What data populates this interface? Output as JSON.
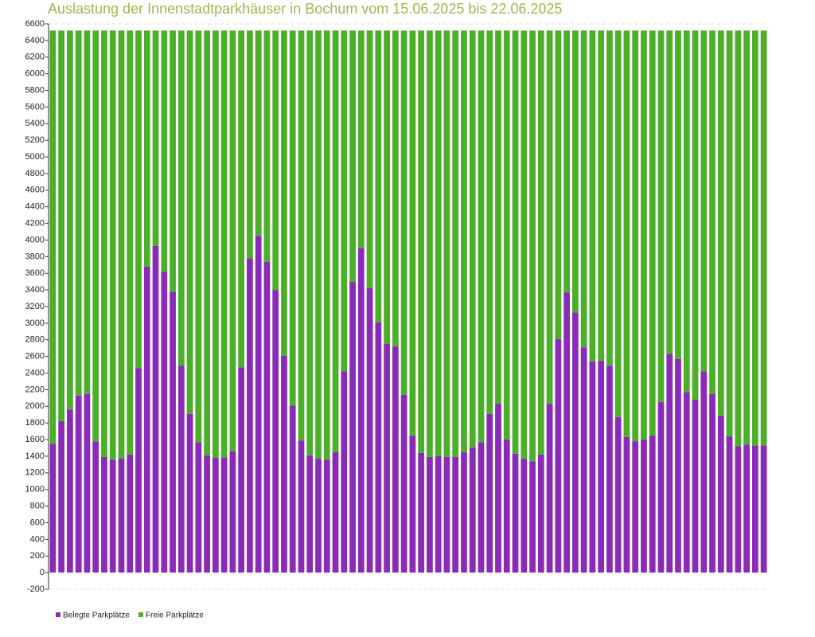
{
  "chart_data": {
    "type": "stacked-bar",
    "title": "Auslastung der Innenstadtparkhäuser in Bochum vom 15.06.2025 bis 22.06.2025",
    "categories": [
      null,
      null,
      null,
      null,
      null,
      null,
      null,
      null,
      null,
      null,
      null,
      null,
      null,
      null,
      null,
      null,
      null,
      null,
      null,
      null,
      null,
      null,
      null,
      null,
      null,
      null,
      null,
      null,
      null,
      null,
      null,
      null,
      null,
      null,
      null,
      null,
      null,
      null,
      null,
      null,
      null,
      null,
      null,
      null,
      null,
      null,
      null,
      null,
      null,
      null,
      null,
      null,
      null,
      null,
      null,
      null,
      null,
      null,
      null,
      null,
      null,
      null,
      null,
      null,
      null,
      null,
      null,
      null,
      null,
      null,
      null,
      null,
      null,
      null,
      null,
      null,
      null,
      null,
      null,
      null,
      null,
      null,
      null,
      null
    ],
    "series": [
      {
        "name": "Belegte Parkplätze",
        "color": "#8a2bb8",
        "values": [
          1550,
          1820,
          1960,
          2130,
          2150,
          1580,
          1390,
          1360,
          1370,
          1420,
          2460,
          3680,
          3930,
          3620,
          3380,
          2490,
          1910,
          1570,
          1410,
          1380,
          1380,
          1460,
          2470,
          3780,
          4050,
          3740,
          3400,
          2610,
          2010,
          1590,
          1410,
          1370,
          1360,
          1450,
          2420,
          3500,
          3900,
          3420,
          3010,
          2750,
          2720,
          2140,
          1650,
          1440,
          1390,
          1400,
          1390,
          1390,
          1450,
          1500,
          1570,
          1910,
          2030,
          1600,
          1430,
          1370,
          1340,
          1420,
          2030,
          2810,
          3370,
          3130,
          2710,
          2540,
          2550,
          2490,
          1870,
          1630,
          1580,
          1600,
          1650,
          2050,
          2630,
          2570,
          2170,
          2080,
          2420,
          2150,
          1890,
          1640,
          1520,
          1540,
          1530,
          1530
        ]
      },
      {
        "name": "Freie Parkplätze",
        "color": "#4caf2a",
        "values": [
          4970,
          4700,
          4560,
          4390,
          4370,
          4940,
          5130,
          5160,
          5150,
          5100,
          4060,
          2840,
          2590,
          2900,
          3140,
          4030,
          4610,
          4950,
          5110,
          5140,
          5140,
          5060,
          4050,
          2740,
          2470,
          2780,
          3120,
          3910,
          4510,
          4930,
          5110,
          5150,
          5160,
          5070,
          4100,
          3020,
          2620,
          3100,
          3510,
          3770,
          3800,
          4380,
          4870,
          5080,
          5130,
          5120,
          5130,
          5130,
          5070,
          5020,
          4950,
          4610,
          4490,
          4920,
          5090,
          5150,
          5180,
          5100,
          4490,
          3710,
          3150,
          3390,
          3810,
          3980,
          3970,
          4030,
          4650,
          4890,
          4940,
          4920,
          4870,
          4470,
          3890,
          3950,
          4350,
          4440,
          4100,
          4370,
          4630,
          4880,
          5000,
          4980,
          4990,
          4990
        ]
      }
    ],
    "ylim": [
      -200,
      6600
    ],
    "yticks": [
      -200,
      0,
      200,
      400,
      600,
      800,
      1000,
      1200,
      1400,
      1600,
      1800,
      2000,
      2200,
      2400,
      2600,
      2800,
      3000,
      3200,
      3400,
      3600,
      3800,
      4000,
      4200,
      4400,
      4600,
      4800,
      5000,
      5200,
      5400,
      5600,
      5800,
      6000,
      6200,
      6400,
      6600
    ],
    "legend": "bottom-left"
  }
}
